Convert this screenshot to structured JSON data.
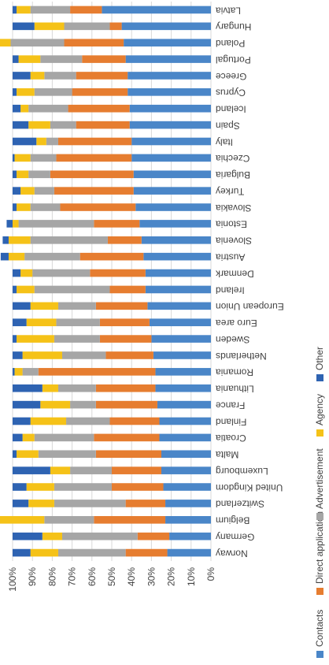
{
  "chart_data": {
    "type": "bar",
    "stacked": true,
    "orientation": "horizontal",
    "rotation": "90deg clockwise (image rotated)",
    "ylim": [
      0,
      100
    ],
    "y_ticks": [
      "0%",
      "10%",
      "20%",
      "30%",
      "40%",
      "50%",
      "60%",
      "70%",
      "80%",
      "90%",
      "100%"
    ],
    "legend_position": "right",
    "categories": [
      "Norway",
      "Germany",
      "Belgium",
      "Switzerland",
      "United Kingdom",
      "Luxembourg",
      "Malta",
      "Croatia",
      "Finland",
      "France",
      "Lithuania",
      "Romania",
      "Netherlands",
      "Sweden",
      "Euro area",
      "European Union",
      "Ireland",
      "Denmark",
      "Austria",
      "Slovenia",
      "Estonia",
      "Slovakia",
      "Turkey",
      "Bulgaria",
      "Czechia",
      "Italy",
      "Spain",
      "Iceland",
      "Cyprus",
      "Greece",
      "Portugal",
      "Poland",
      "Hungary",
      "Latvia"
    ],
    "series": [
      {
        "name": "Contacts",
        "color": "#4a86c8",
        "values": [
          22,
          21,
          23,
          23,
          24,
          25,
          25,
          26,
          26,
          27,
          28,
          28,
          29,
          30,
          31,
          32,
          33,
          33,
          34,
          35,
          36,
          38,
          39,
          39,
          40,
          40,
          41,
          41,
          42,
          42,
          43,
          44,
          45,
          55
        ]
      },
      {
        "name": "Direct application",
        "color": "#e67d30",
        "values": [
          21,
          16,
          36,
          20,
          26,
          25,
          33,
          33,
          25,
          31,
          30,
          59,
          24,
          26,
          25,
          26,
          18,
          28,
          32,
          17,
          23,
          38,
          40,
          42,
          38,
          37,
          27,
          31,
          28,
          26,
          22,
          30,
          6,
          16
        ]
      },
      {
        "name": "Advertisement",
        "color": "#a6a6a6",
        "values": [
          34,
          38,
          25,
          36,
          29,
          21,
          29,
          30,
          22,
          13,
          19,
          8,
          22,
          23,
          22,
          19,
          38,
          29,
          28,
          39,
          38,
          15,
          10,
          11,
          13,
          6,
          13,
          20,
          19,
          16,
          21,
          27,
          23,
          20
        ]
      },
      {
        "name": "Agency",
        "color": "#f5c218",
        "values": [
          14,
          10,
          25,
          13,
          14,
          10,
          11,
          6,
          18,
          15,
          8,
          4,
          20,
          19,
          15,
          14,
          9,
          6,
          8,
          11,
          3,
          7,
          7,
          6,
          8,
          5,
          11,
          4,
          9,
          7,
          11,
          7,
          15,
          7
        ]
      },
      {
        "name": "Other",
        "color": "#2e63b2",
        "values": [
          9,
          15,
          1,
          8,
          7,
          19,
          2,
          5,
          9,
          14,
          15,
          1,
          5,
          2,
          7,
          9,
          2,
          4,
          4,
          3,
          3,
          2,
          4,
          2,
          1,
          12,
          8,
          4,
          2,
          9,
          3,
          2,
          11,
          2
        ]
      }
    ]
  }
}
